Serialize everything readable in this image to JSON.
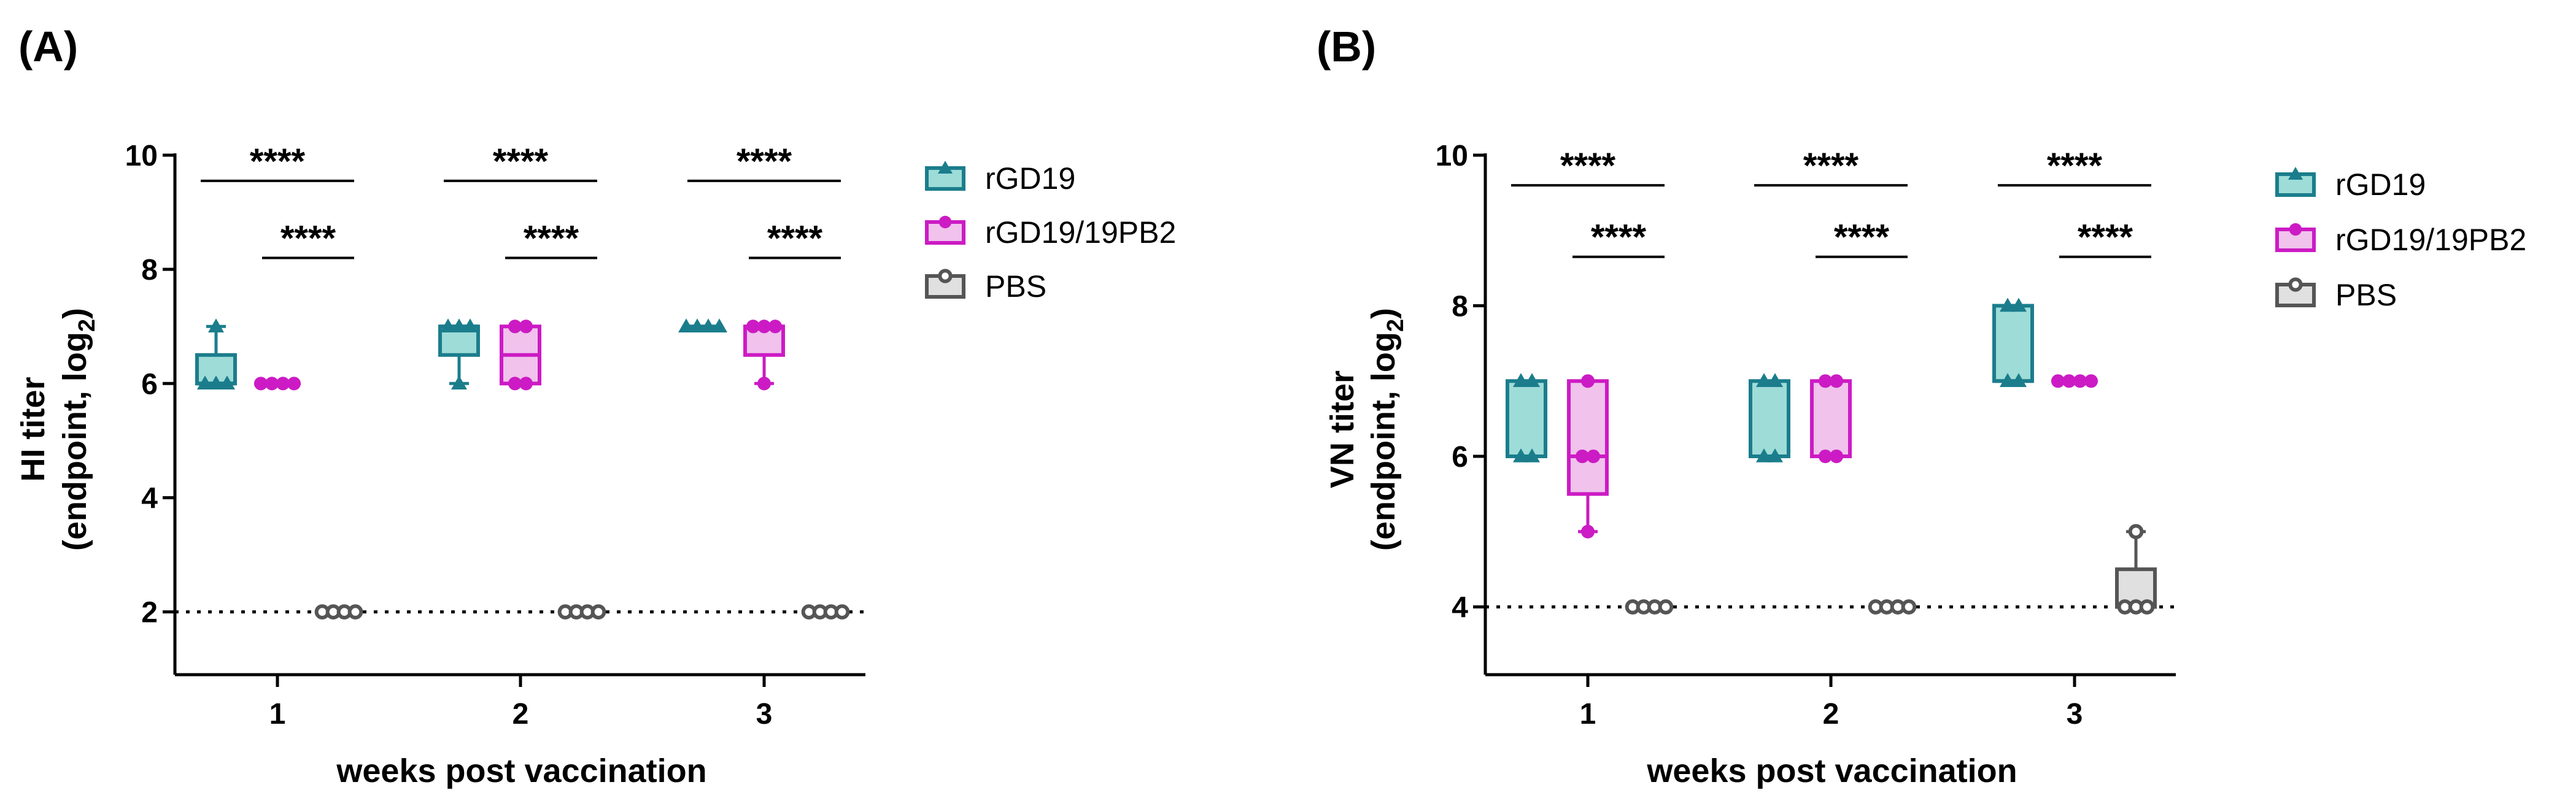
{
  "chart_data": [
    {
      "panel_label": "(A)",
      "type": "box",
      "xlabel": "weeks post vaccination",
      "ylabel_line1": "HI titer",
      "ylabel_line2_main": "(endpoint, log",
      "ylabel_line2_sub": "2",
      "ylabel_line2_end": ")",
      "categories": [
        "1",
        "2",
        "3"
      ],
      "ylim": [
        0.9,
        10
      ],
      "yticks": [
        2,
        4,
        6,
        8,
        10
      ],
      "detection_limit": 2,
      "significance": [
        {
          "group": 1,
          "label": "****",
          "y": 9.55,
          "from": "rGD19",
          "to": "PBS"
        },
        {
          "group": 1,
          "label": "****",
          "y": 8.2,
          "from": "rGD19/19PB2",
          "to": "PBS"
        },
        {
          "group": 2,
          "label": "****",
          "y": 9.55,
          "from": "rGD19",
          "to": "PBS"
        },
        {
          "group": 2,
          "label": "****",
          "y": 8.2,
          "from": "rGD19/19PB2",
          "to": "PBS"
        },
        {
          "group": 3,
          "label": "****",
          "y": 9.55,
          "from": "rGD19",
          "to": "PBS"
        },
        {
          "group": 3,
          "label": "****",
          "y": 8.2,
          "from": "rGD19/19PB2",
          "to": "PBS"
        }
      ],
      "series": [
        {
          "name": "rGD19",
          "color": "#1b7d8c",
          "fill": "#9edcd8",
          "marker": "triangle",
          "boxes": [
            {
              "week": 1,
              "min": 6,
              "q1": 6,
              "median": 6,
              "q3": 6.5,
              "max": 7,
              "points": [
                6,
                6,
                6,
                7
              ]
            },
            {
              "week": 2,
              "min": 6,
              "q1": 6.5,
              "median": 7,
              "q3": 7,
              "max": 7,
              "points": [
                6,
                7,
                7,
                7
              ]
            },
            {
              "week": 3,
              "min": 7,
              "q1": 7,
              "median": 7,
              "q3": 7,
              "max": 7,
              "points": [
                7,
                7,
                7,
                7
              ]
            }
          ]
        },
        {
          "name": "rGD19/19PB2",
          "color": "#cc1bc4",
          "fill": "#f0c2ec",
          "marker": "circle",
          "boxes": [
            {
              "week": 1,
              "min": 6,
              "q1": 6,
              "median": 6,
              "q3": 6,
              "max": 6,
              "points": [
                6,
                6,
                6,
                6
              ]
            },
            {
              "week": 2,
              "min": 6,
              "q1": 6,
              "median": 6.5,
              "q3": 7,
              "max": 7,
              "points": [
                6,
                6,
                7,
                7
              ]
            },
            {
              "week": 3,
              "min": 6,
              "q1": 6.5,
              "median": 7,
              "q3": 7,
              "max": 7,
              "points": [
                6,
                7,
                7,
                7
              ]
            }
          ]
        },
        {
          "name": "PBS",
          "color": "#555555",
          "fill": "#e0e0e0",
          "marker": "open-circle",
          "boxes": [
            {
              "week": 1,
              "min": 2,
              "q1": 2,
              "median": 2,
              "q3": 2,
              "max": 2,
              "points": [
                2,
                2,
                2,
                2
              ]
            },
            {
              "week": 2,
              "min": 2,
              "q1": 2,
              "median": 2,
              "q3": 2,
              "max": 2,
              "points": [
                2,
                2,
                2,
                2
              ]
            },
            {
              "week": 3,
              "min": 2,
              "q1": 2,
              "median": 2,
              "q3": 2,
              "max": 2,
              "points": [
                2,
                2,
                2,
                2
              ]
            }
          ]
        }
      ],
      "legend": [
        {
          "name": "rGD19",
          "marker": "triangle"
        },
        {
          "name": "rGD19/19PB2",
          "marker": "circle"
        },
        {
          "name": "PBS",
          "marker": "open-circle"
        }
      ]
    },
    {
      "panel_label": "(B)",
      "type": "box",
      "xlabel": "weeks post vaccination",
      "ylabel_line1": "VN titer",
      "ylabel_line2_main": "(endpoint, log",
      "ylabel_line2_sub": "2",
      "ylabel_line2_end": ")",
      "categories": [
        "1",
        "2",
        "3"
      ],
      "ylim": [
        3.1,
        10
      ],
      "yticks": [
        4,
        6,
        8,
        10
      ],
      "detection_limit": 4,
      "significance": [
        {
          "group": 1,
          "label": "****",
          "y": 9.6,
          "from": "rGD19",
          "to": "PBS"
        },
        {
          "group": 1,
          "label": "****",
          "y": 8.65,
          "from": "rGD19/19PB2",
          "to": "PBS"
        },
        {
          "group": 2,
          "label": "****",
          "y": 9.6,
          "from": "rGD19",
          "to": "PBS"
        },
        {
          "group": 2,
          "label": "****",
          "y": 8.65,
          "from": "rGD19/19PB2",
          "to": "PBS"
        },
        {
          "group": 3,
          "label": "****",
          "y": 9.6,
          "from": "rGD19",
          "to": "PBS"
        },
        {
          "group": 3,
          "label": "****",
          "y": 8.65,
          "from": "rGD19/19PB2",
          "to": "PBS"
        }
      ],
      "series": [
        {
          "name": "rGD19",
          "color": "#1b7d8c",
          "fill": "#9edcd8",
          "marker": "triangle",
          "boxes": [
            {
              "week": 1,
              "min": 6,
              "q1": 6,
              "median": 6,
              "q3": 7,
              "max": 7,
              "points": [
                6,
                6,
                7,
                7
              ]
            },
            {
              "week": 2,
              "min": 6,
              "q1": 6,
              "median": 6,
              "q3": 7,
              "max": 7,
              "points": [
                6,
                6,
                7,
                7
              ]
            },
            {
              "week": 3,
              "min": 7,
              "q1": 7,
              "median": 7,
              "q3": 8,
              "max": 8,
              "points": [
                7,
                7,
                8,
                8
              ]
            }
          ]
        },
        {
          "name": "rGD19/19PB2",
          "color": "#cc1bc4",
          "fill": "#f0c2ec",
          "marker": "circle",
          "boxes": [
            {
              "week": 1,
              "min": 5,
              "q1": 5.5,
              "median": 6,
              "q3": 7,
              "max": 7,
              "points": [
                5,
                6,
                6,
                7
              ]
            },
            {
              "week": 2,
              "min": 6,
              "q1": 6,
              "median": 6,
              "q3": 7,
              "max": 7,
              "points": [
                6,
                6,
                7,
                7
              ]
            },
            {
              "week": 3,
              "min": 7,
              "q1": 7,
              "median": 7,
              "q3": 7,
              "max": 7,
              "points": [
                7,
                7,
                7,
                7
              ]
            }
          ]
        },
        {
          "name": "PBS",
          "color": "#555555",
          "fill": "#e0e0e0",
          "marker": "open-circle",
          "boxes": [
            {
              "week": 1,
              "min": 4,
              "q1": 4,
              "median": 4,
              "q3": 4,
              "max": 4,
              "points": [
                4,
                4,
                4,
                4
              ]
            },
            {
              "week": 2,
              "min": 4,
              "q1": 4,
              "median": 4,
              "q3": 4,
              "max": 4,
              "points": [
                4,
                4,
                4,
                4
              ]
            },
            {
              "week": 3,
              "min": 4,
              "q1": 4,
              "median": 4,
              "q3": 4.5,
              "max": 5,
              "points": [
                4,
                4,
                4,
                5
              ]
            }
          ]
        }
      ],
      "legend": [
        {
          "name": "rGD19",
          "marker": "triangle"
        },
        {
          "name": "rGD19/19PB2",
          "marker": "circle"
        },
        {
          "name": "PBS",
          "marker": "open-circle"
        }
      ]
    }
  ]
}
